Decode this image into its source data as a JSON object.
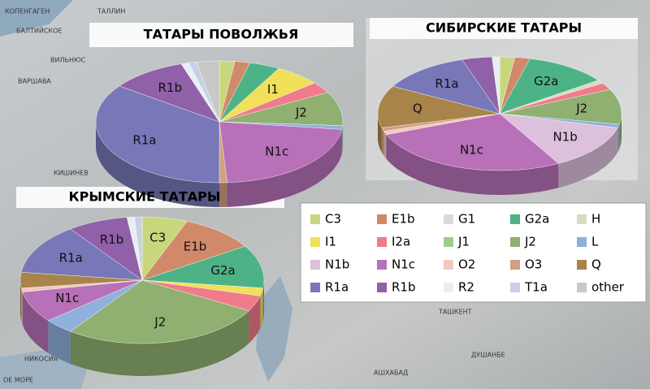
{
  "chart_data": [
    {
      "type": "pie3d",
      "title": "ТАТАРЫ ПОВОЛЖЬЯ",
      "categories": [
        null,
        null,
        null,
        "I1",
        null,
        "J2",
        null,
        "N1c",
        null,
        "R1a",
        "R1b",
        null,
        null,
        null
      ],
      "values": [
        2,
        2,
        4,
        6,
        3,
        9,
        1,
        22,
        1,
        35,
        10,
        1,
        1,
        3
      ],
      "colors": [
        "#c8d77e",
        "#d08a6a",
        "#4db386",
        "#f0e05a",
        "#f07b8a",
        "#8fb070",
        "#8fb0dc",
        "#b870b8",
        "#d0a080",
        "#7878b8",
        "#9060a8",
        "#e8eef4",
        "#c8d0e8",
        "#c8c8c8"
      ]
    },
    {
      "type": "pie3d",
      "title": "СИБИРСКИЕ ТАТАРЫ",
      "categories": [
        null,
        null,
        "G2a",
        null,
        null,
        "J2",
        null,
        "N1b",
        "N1c",
        null,
        null,
        "Q",
        "R1a",
        null,
        null
      ],
      "values": [
        2,
        2,
        11,
        1,
        2,
        10,
        1,
        13,
        27,
        1,
        1,
        12,
        12,
        4,
        1
      ],
      "colors": [
        "#c8d77e",
        "#d08a6a",
        "#4db386",
        "#d8dcc0",
        "#f07b8a",
        "#8fb070",
        "#8fb0dc",
        "#dcc0dc",
        "#b870b8",
        "#f0c8c0",
        "#d0a080",
        "#a8844a",
        "#7878b8",
        "#9060a8",
        "#e8eef4"
      ]
    },
    {
      "type": "pie3d",
      "title": "КРЫМСКИЕ ТАТАРЫ",
      "categories": [
        "C3",
        "E1b",
        "G2a",
        null,
        null,
        "J2",
        null,
        "N1c",
        null,
        null,
        "R1a",
        "R1b",
        null,
        null
      ],
      "values": [
        6,
        10,
        11,
        2,
        4,
        27,
        4,
        8,
        1,
        4,
        13,
        8,
        1,
        1
      ],
      "colors": [
        "#c8d77e",
        "#d08a6a",
        "#4db386",
        "#f0e05a",
        "#f07b8a",
        "#8fb070",
        "#8fb0dc",
        "#b870b8",
        "#f0c8c0",
        "#a8844a",
        "#7878b8",
        "#9060a8",
        "#e8eef4",
        "#c8d0e8"
      ]
    }
  ],
  "legend": {
    "categories": [
      "C3",
      "E1b",
      "G1",
      "G2a",
      "H",
      "I1",
      "I2a",
      "J1",
      "J2",
      "L",
      "N1b",
      "N1c",
      "O2",
      "O3",
      "Q",
      "R1a",
      "R1b",
      "R2",
      "T1a",
      "other"
    ],
    "colors": [
      "#c8d77e",
      "#d08a6a",
      "#d9d9d9",
      "#4db386",
      "#d8dcc0",
      "#f0e05a",
      "#f07b8a",
      "#9ccf8c",
      "#8fb070",
      "#8fb0dc",
      "#dcc0dc",
      "#b870b8",
      "#f0c8c0",
      "#d0a080",
      "#a8844a",
      "#7878b8",
      "#9060a8",
      "#e8eef4",
      "#c8d0e8",
      "#c8c8c8"
    ]
  },
  "map_labels": [
    "КОПЕНГАГЕН",
    "ТАЛЛИН",
    "БАЛТИЙСКОЕ",
    "ВИЛЬНЮС",
    "ВАРШАВА",
    "КИШИНЕВ",
    "НИКОСИЯ",
    "ОЕ МОРЕ",
    "ТАШКЕНТ",
    "ДУШАНБЕ",
    "АШХАБАД"
  ]
}
